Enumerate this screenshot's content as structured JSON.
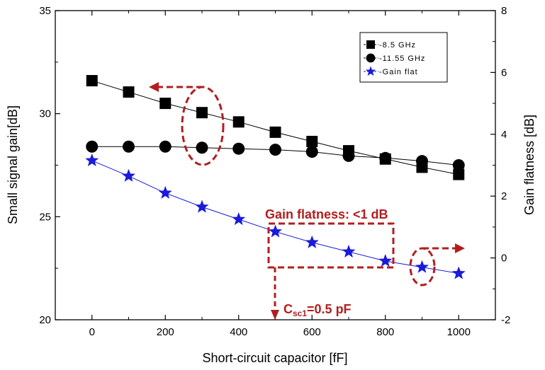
{
  "chart_data": {
    "type": "line",
    "xlabel": "Short-circuit capacitor [fF]",
    "ylabel_left": "Small signal gain[dB]",
    "ylabel_right": "Gain flatness [dB]",
    "xlim": [
      -100,
      1100
    ],
    "ylim_left": [
      20,
      35
    ],
    "ylim_right": [
      -2,
      8
    ],
    "x_ticks": [
      "0",
      "200",
      "400",
      "600",
      "800",
      "1000"
    ],
    "y_left_ticks": [
      "20",
      "25",
      "30",
      "35"
    ],
    "y_right_ticks": [
      "-2",
      "0",
      "2",
      "4",
      "6",
      "8"
    ],
    "x": [
      0,
      100,
      200,
      300,
      400,
      500,
      600,
      700,
      800,
      900,
      1000
    ],
    "series": [
      {
        "name": "8.5 GHz",
        "axis": "left",
        "marker": "square",
        "color": "#000000",
        "values": [
          31.6,
          31.05,
          30.5,
          30.05,
          29.6,
          29.1,
          28.65,
          28.2,
          27.8,
          27.4,
          27.05
        ]
      },
      {
        "name": "11.55 GHz",
        "axis": "left",
        "marker": "circle",
        "color": "#000000",
        "values": [
          28.4,
          28.4,
          28.4,
          28.35,
          28.3,
          28.25,
          28.15,
          27.95,
          27.85,
          27.7,
          27.5
        ]
      },
      {
        "name": "Gain flat",
        "axis": "right",
        "marker": "star",
        "color": "#1a1adb",
        "values": [
          3.15,
          2.65,
          2.1,
          1.65,
          1.25,
          0.85,
          0.5,
          0.2,
          -0.1,
          -0.3,
          -0.5
        ]
      }
    ],
    "legend_position": "top-right",
    "grid": false,
    "annotations": {
      "flatness": "Gain flatness: <1 dB",
      "csc_main": "C",
      "csc_sub": "sc1",
      "csc_value": "=0.5 pF"
    },
    "accent_color": "#b21e1e"
  }
}
